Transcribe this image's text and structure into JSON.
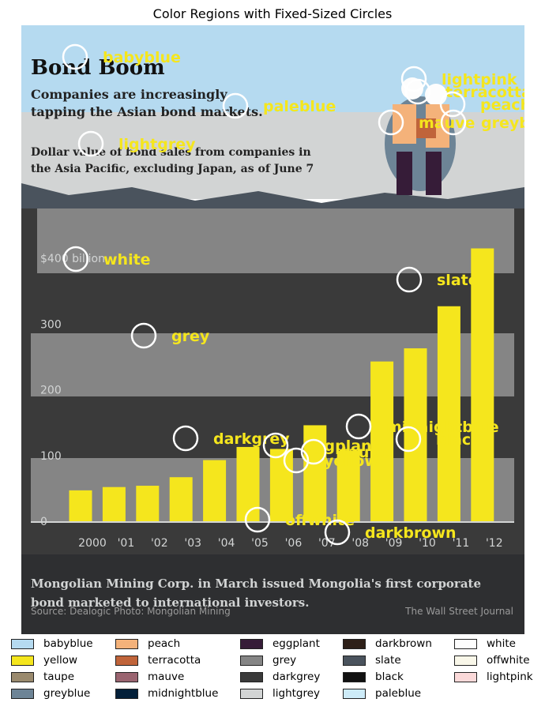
{
  "title": "Color Regions with Fixed-Sized Circles",
  "background_image": {
    "headline": "Bond Boom",
    "subhead": [
      "Companies are increasingly",
      "tapping the Asian bond markets."
    ],
    "description": [
      "Dollar value of bond sales from companies in",
      "the Asia Pacific, excluding Japan, as of June 7"
    ],
    "y_ticks": [
      "$400 billion",
      "300",
      "200",
      "100",
      "0"
    ],
    "caption": [
      "Mongolian Mining Corp. in March issued Mongolia's first corporate",
      "bond marketed to international investors."
    ],
    "source": "Source: Dealogic   Photo: Mongolian Mining",
    "credit": "The Wall Street Journal"
  },
  "chart_data": {
    "type": "bar",
    "categories": [
      "2000",
      "'01",
      "'02",
      "'03",
      "'04",
      "'05",
      "'06",
      "'07",
      "'08",
      "'09",
      "'10",
      "'11",
      "'12"
    ],
    "values": [
      47,
      52,
      54,
      67,
      93,
      113,
      110,
      146,
      107,
      243,
      263,
      327,
      415
    ],
    "yticks": [
      0,
      100,
      200,
      300,
      400
    ],
    "ylim": [
      0,
      415
    ],
    "bar_color": "#f5e61d",
    "circle_labels": [
      "babyblue",
      "lightpink",
      "terracotta",
      "peach",
      "paleblue",
      "mauve",
      "greyblue",
      "lightgrey",
      "white",
      "slate",
      "grey",
      "darkgrey",
      "midnightblue",
      "black",
      "eggplant",
      "taupe",
      "yellow",
      "offwhite",
      "darkbrown"
    ]
  },
  "legend": [
    {
      "label": "babyblue",
      "color": "#b5daf0"
    },
    {
      "label": "yellow",
      "color": "#f5e61d"
    },
    {
      "label": "taupe",
      "color": "#9a8a6e"
    },
    {
      "label": "greyblue",
      "color": "#6d8496"
    },
    {
      "label": "peach",
      "color": "#f4b27a"
    },
    {
      "label": "terracotta",
      "color": "#c0643a"
    },
    {
      "label": "mauve",
      "color": "#9a6470"
    },
    {
      "label": "midnightblue",
      "color": "#04203a"
    },
    {
      "label": "eggplant",
      "color": "#361c38"
    },
    {
      "label": "grey",
      "color": "#858585"
    },
    {
      "label": "darkgrey",
      "color": "#3a3a3a"
    },
    {
      "label": "lightgrey",
      "color": "#d2d4d4"
    },
    {
      "label": "darkbrown",
      "color": "#2e2018"
    },
    {
      "label": "slate",
      "color": "#4a535d"
    },
    {
      "label": "black",
      "color": "#111111"
    },
    {
      "label": "paleblue",
      "color": "#cdebf8"
    },
    {
      "label": "white",
      "color": "#fdfdfd"
    },
    {
      "label": "offwhite",
      "color": "#f9f7e9"
    },
    {
      "label": "lightpink",
      "color": "#fbd9d9"
    }
  ]
}
